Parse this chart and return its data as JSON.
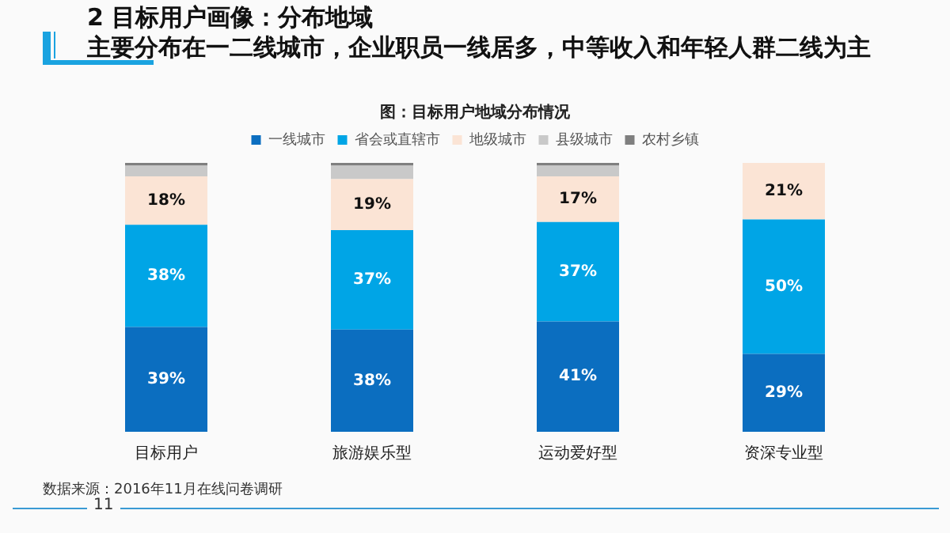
{
  "chart_data": {
    "type": "bar",
    "stacked": true,
    "title": "2 目标用户画像：分布地域",
    "subtitle": "主要分布在一二线城市，企业职员一线居多，中等收入和年轻人群二线为主",
    "annotations": [
      "图：目标用户地域分布情况",
      "数据来源：2016年11月在线问卷调研",
      "11"
    ],
    "categories": [
      "目标用户",
      "旅游娱乐型",
      "运动爱好型",
      "资深专业型"
    ],
    "ylim": [
      0,
      100
    ],
    "tick_labels": "x",
    "legend": "top",
    "grid": false,
    "series": [
      {
        "name": "一线城市",
        "color": "#0b6ec0",
        "values": [
          39,
          38,
          41,
          29
        ],
        "value_labels": [
          "39%",
          "38%",
          "41%",
          "29%"
        ]
      },
      {
        "name": "省会或直辖市",
        "color": "#00a5e6",
        "values": [
          38,
          37,
          37,
          50
        ],
        "value_labels": [
          "38%",
          "37%",
          "37%",
          "50%"
        ]
      },
      {
        "name": "地级城市",
        "color": "#fbe4d5",
        "values": [
          18,
          19,
          17,
          21
        ],
        "value_labels": [
          "18%",
          "19%",
          "17%",
          "21%"
        ]
      },
      {
        "name": "县级城市",
        "color": "#c9c9c9",
        "values": [
          4,
          5,
          4,
          0
        ]
      },
      {
        "name": "农村乡镇",
        "color": "#7f7f7f",
        "values": [
          1,
          1,
          1,
          0
        ]
      }
    ]
  }
}
